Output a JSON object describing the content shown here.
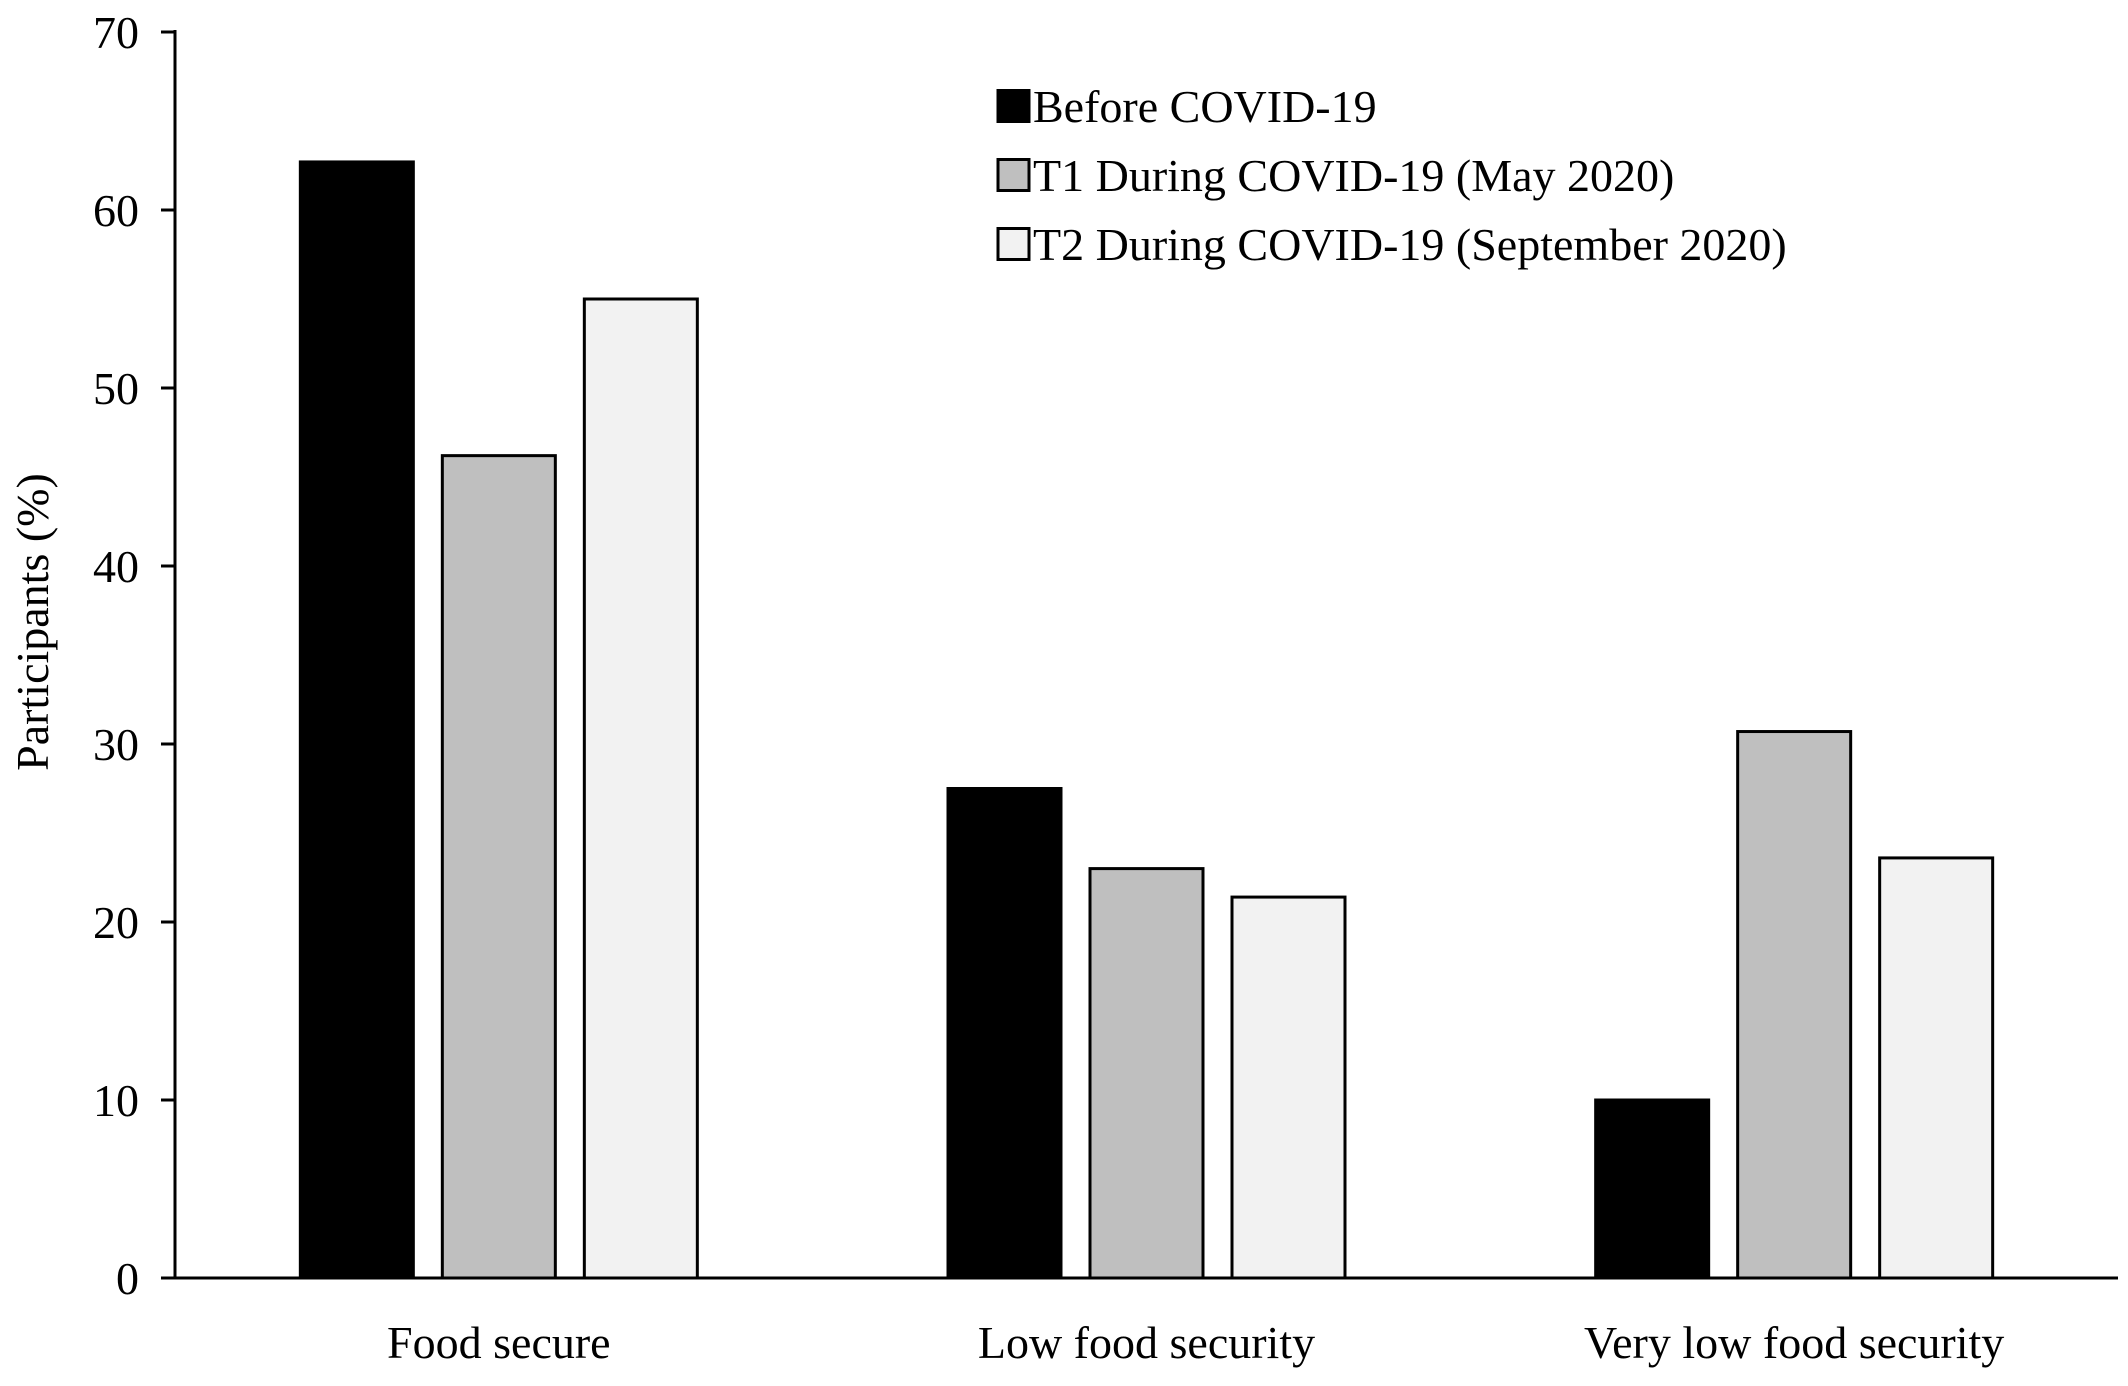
{
  "chart_data": {
    "type": "bar",
    "title": "",
    "xlabel": "",
    "ylabel": "Participants (%)",
    "ylim": [
      0,
      70
    ],
    "yticks": [
      0,
      10,
      20,
      30,
      40,
      50,
      60,
      70
    ],
    "grid": false,
    "legend_position": "top-right",
    "categories": [
      "Food secure",
      "Low food security",
      "Very low food security"
    ],
    "series": [
      {
        "name": "Before COVID-19",
        "color": "#000000",
        "values": [
          62.7,
          27.5,
          10.0
        ]
      },
      {
        "name": "T1 During COVID-19 (May 2020)",
        "color": "#bfbfbf",
        "values": [
          46.2,
          23.0,
          30.7
        ]
      },
      {
        "name": "T2 During COVID-19 (September 2020)",
        "color": "#f2f2f2",
        "values": [
          55.0,
          21.4,
          23.6
        ]
      }
    ]
  }
}
